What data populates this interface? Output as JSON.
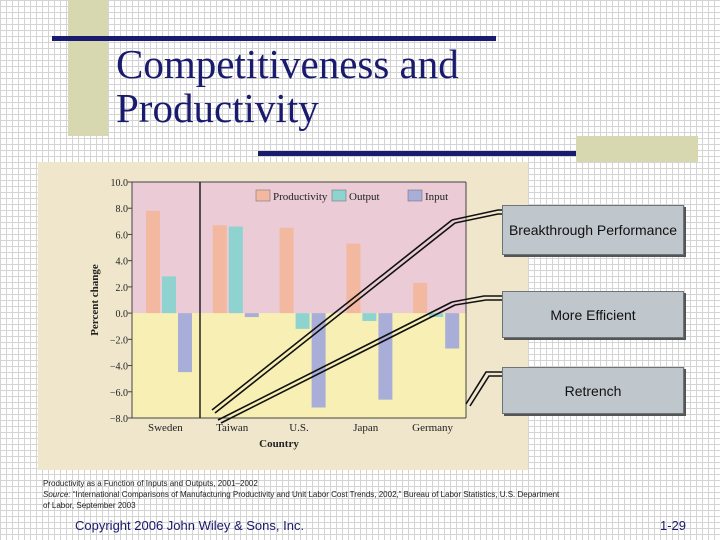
{
  "slide": {
    "title": "Competitiveness and Productivity",
    "footer_left": "Copyright 2006 John Wiley & Sons, Inc.",
    "footer_right": "1-29"
  },
  "callouts": [
    {
      "label": "Breakthrough Performance"
    },
    {
      "label": "More Efficient"
    },
    {
      "label": "Retrench"
    }
  ],
  "caption": {
    "line1": "Productivity as a Function of Inputs and Outputs, 2001–2002",
    "source_label": "Source:",
    "source_text": " “International Comparisons of Manufacturing Productivity and Unit Labor Cost Trends, 2002,” Bureau of Labor Statistics, U.S. Department of Labor, September 2003"
  },
  "colors": {
    "productivity": "#f3b8a0",
    "output": "#8ed3cf",
    "input": "#a9aed8",
    "positive_zone": "#eacbd6",
    "negative_zone": "#f7efb3",
    "title": "#1a1a6e"
  },
  "chart_data": {
    "type": "bar",
    "xlabel": "Country",
    "ylabel": "Percent change",
    "ylim": [
      -8.0,
      10.0
    ],
    "yticks": [
      "10.0",
      "8.0",
      "6.0",
      "4.0",
      "2.0",
      "0.0",
      "−2.0",
      "−4.0",
      "−6.0",
      "−8.0"
    ],
    "categories": [
      "Sweden",
      "Taiwan",
      "U.S.",
      "Japan",
      "Germany"
    ],
    "legend_position": "top",
    "series": [
      {
        "name": "Productivity",
        "values": [
          7.8,
          6.7,
          6.5,
          5.3,
          2.3
        ]
      },
      {
        "name": "Output",
        "values": [
          2.8,
          6.6,
          -1.2,
          -0.6,
          -0.3
        ]
      },
      {
        "name": "Input",
        "values": [
          -4.5,
          -0.3,
          -7.2,
          -6.6,
          -2.7
        ]
      }
    ]
  }
}
